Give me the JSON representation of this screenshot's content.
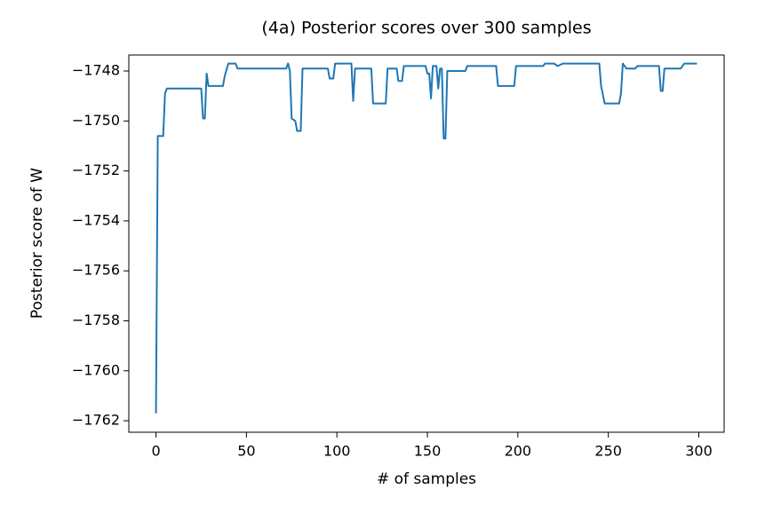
{
  "chart_data": {
    "type": "line",
    "title": "(4a) Posterior scores over 300 samples",
    "xlabel": "# of samples",
    "ylabel": "Posterior score of W",
    "color": "#1f77b4",
    "grid": false,
    "xlim": [
      -15,
      314
    ],
    "ylim": [
      -1762.46,
      -1747.36
    ],
    "xticks": [
      0,
      50,
      100,
      150,
      200,
      250,
      300
    ],
    "yticks": [
      {
        "value": -1762,
        "label": "−1762"
      },
      {
        "value": -1760,
        "label": "−1760"
      },
      {
        "value": -1758,
        "label": "−1758"
      },
      {
        "value": -1756,
        "label": "−1756"
      },
      {
        "value": -1754,
        "label": "−1754"
      },
      {
        "value": -1752,
        "label": "−1752"
      },
      {
        "value": -1750,
        "label": "−1750"
      },
      {
        "value": -1748,
        "label": "−1748"
      }
    ],
    "x": [
      0,
      1,
      4,
      5,
      6,
      25,
      26,
      27,
      28,
      29,
      37,
      38,
      40,
      44,
      45,
      72,
      73,
      74,
      75,
      77,
      78,
      80,
      81,
      95,
      96,
      98,
      99,
      108,
      109,
      110,
      119,
      120,
      127,
      128,
      133,
      134,
      136,
      137,
      149,
      150,
      151,
      152,
      153,
      155,
      156,
      157,
      158,
      159,
      160,
      161,
      171,
      172,
      188,
      189,
      198,
      199,
      214,
      215,
      220,
      222,
      225,
      245,
      246,
      248,
      256,
      257,
      258,
      260,
      265,
      266,
      278,
      279,
      280,
      281,
      290,
      292,
      299
    ],
    "values": [
      -1761.7,
      -1750.6,
      -1750.6,
      -1748.9,
      -1748.7,
      -1748.7,
      -1749.9,
      -1749.9,
      -1748.1,
      -1748.6,
      -1748.6,
      -1748.2,
      -1747.7,
      -1747.7,
      -1747.9,
      -1747.9,
      -1747.7,
      -1748.0,
      -1749.9,
      -1750.0,
      -1750.4,
      -1750.4,
      -1747.9,
      -1747.9,
      -1748.3,
      -1748.3,
      -1747.7,
      -1747.7,
      -1749.2,
      -1747.9,
      -1747.9,
      -1749.3,
      -1749.3,
      -1747.9,
      -1747.9,
      -1748.4,
      -1748.4,
      -1747.8,
      -1747.8,
      -1748.1,
      -1748.1,
      -1749.1,
      -1747.8,
      -1747.8,
      -1748.7,
      -1747.9,
      -1747.9,
      -1750.7,
      -1750.7,
      -1748.0,
      -1748.0,
      -1747.8,
      -1747.8,
      -1748.6,
      -1748.6,
      -1747.8,
      -1747.8,
      -1747.7,
      -1747.7,
      -1747.8,
      -1747.7,
      -1747.7,
      -1748.6,
      -1749.3,
      -1749.3,
      -1748.9,
      -1747.7,
      -1747.9,
      -1747.9,
      -1747.8,
      -1747.8,
      -1748.8,
      -1748.8,
      -1747.9,
      -1747.9,
      -1747.7,
      -1747.7
    ]
  }
}
